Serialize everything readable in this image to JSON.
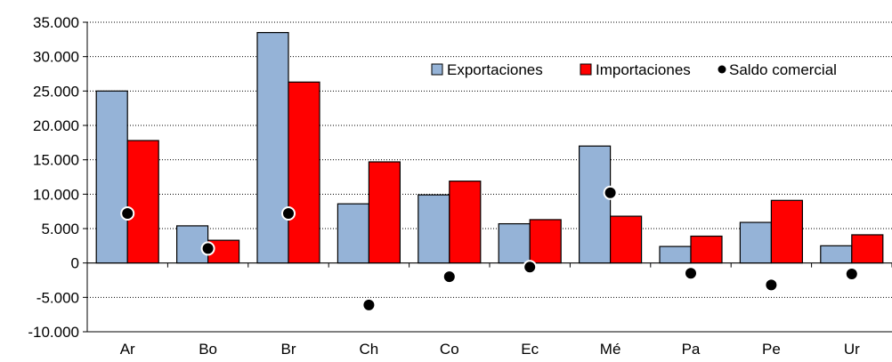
{
  "chart_data": {
    "type": "bar",
    "title": "",
    "xlabel": "",
    "ylabel": "",
    "categories": [
      "Ar",
      "Bo",
      "Br",
      "Ch",
      "Co",
      "Ec",
      "Mé",
      "Pa",
      "Pe",
      "Ur"
    ],
    "ylim": [
      -10000,
      35000
    ],
    "yticks": [
      -10000,
      -5000,
      0,
      5000,
      10000,
      15000,
      20000,
      25000,
      30000,
      35000
    ],
    "ytick_labels": [
      "-10.000",
      "-5.000",
      "0",
      "5.000",
      "10.000",
      "15.000",
      "20.000",
      "25.000",
      "30.000",
      "35.000"
    ],
    "grid": "horizontal-dotted",
    "legend_position": "top-right",
    "series": [
      {
        "name": "Exportaciones",
        "kind": "bar",
        "color": "#95B3D7",
        "values": [
          25000,
          5400,
          33500,
          8600,
          9900,
          5700,
          17000,
          2400,
          5900,
          2500
        ]
      },
      {
        "name": "Importaciones",
        "kind": "bar",
        "color": "#FF0000",
        "values": [
          17800,
          3300,
          26300,
          14700,
          11900,
          6300,
          6800,
          3900,
          9100,
          4100
        ]
      },
      {
        "name": "Saldo comercial",
        "kind": "point",
        "color": "#000000",
        "values": [
          7200,
          2100,
          7200,
          -6100,
          -2000,
          -600,
          10200,
          -1500,
          -3200,
          -1600
        ]
      }
    ]
  }
}
